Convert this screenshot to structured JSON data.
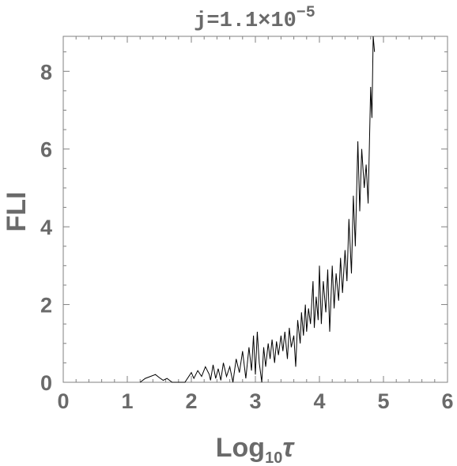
{
  "chart_data": {
    "type": "line",
    "title_main": "j=1.1×10",
    "title_exp": "−5",
    "xlabel_main": "Log",
    "xlabel_sub": "10",
    "xlabel_var": "τ",
    "ylabel": "FLI",
    "xlim": [
      0,
      6
    ],
    "ylim": [
      0,
      8.9
    ],
    "x_ticks": [
      0,
      1,
      2,
      3,
      4,
      5,
      6
    ],
    "x_tick_labels": [
      "0",
      "1",
      "2",
      "3",
      "4",
      "5",
      "6"
    ],
    "y_ticks": [
      0,
      2,
      4,
      6,
      8
    ],
    "y_tick_labels": [
      "0",
      "2",
      "4",
      "6",
      "8"
    ],
    "grid": false,
    "line_color": "#000000",
    "axis_color": "#808080",
    "series": [
      {
        "x": [
          1.2,
          1.28,
          1.36,
          1.44,
          1.5,
          1.56,
          1.62,
          1.7,
          1.9,
          2.0,
          2.04,
          2.1,
          2.16,
          2.22,
          2.28,
          2.3,
          2.34,
          2.38,
          2.42,
          2.46,
          2.5,
          2.55,
          2.6,
          2.65,
          2.7,
          2.75,
          2.8,
          2.85,
          2.9,
          2.94,
          2.97,
          3.0,
          3.03,
          3.06,
          3.1,
          3.13,
          3.16,
          3.2,
          3.23,
          3.26,
          3.3,
          3.33,
          3.36,
          3.4,
          3.43,
          3.46,
          3.5,
          3.53,
          3.56,
          3.6,
          3.63,
          3.66,
          3.7,
          3.72,
          3.75,
          3.78,
          3.8,
          3.83,
          3.86,
          3.9,
          3.92,
          3.95,
          3.98,
          4.0,
          4.03,
          4.06,
          4.1,
          4.13,
          4.16,
          4.2,
          4.23,
          4.26,
          4.3,
          4.33,
          4.36,
          4.4,
          4.43,
          4.46,
          4.5,
          4.53,
          4.56,
          4.6,
          4.63,
          4.66,
          4.7,
          4.73,
          4.76,
          4.8,
          4.82,
          4.84,
          4.86
        ],
        "y": [
          0.0,
          0.1,
          0.15,
          0.2,
          0.12,
          0.05,
          0.1,
          0.0,
          0.0,
          0.25,
          0.1,
          0.3,
          0.15,
          0.4,
          0.2,
          0.05,
          0.45,
          0.1,
          0.35,
          0.05,
          0.5,
          0.15,
          0.4,
          0.0,
          0.6,
          0.25,
          0.8,
          0.1,
          0.9,
          0.3,
          1.2,
          0.2,
          1.3,
          0.5,
          0.0,
          0.9,
          0.4,
          1.0,
          0.6,
          1.1,
          0.5,
          1.05,
          0.7,
          1.2,
          0.8,
          1.3,
          0.6,
          1.4,
          0.9,
          1.2,
          0.4,
          1.6,
          1.0,
          1.8,
          1.2,
          2.0,
          1.3,
          1.9,
          1.5,
          2.6,
          1.4,
          2.2,
          1.6,
          3.0,
          1.5,
          2.6,
          1.8,
          2.9,
          1.3,
          3.0,
          1.9,
          2.8,
          2.1,
          3.2,
          2.3,
          3.4,
          2.6,
          4.2,
          2.8,
          4.8,
          3.5,
          6.2,
          4.4,
          6.0,
          5.0,
          5.6,
          4.6,
          7.6,
          6.8,
          8.9,
          8.5
        ]
      }
    ]
  }
}
